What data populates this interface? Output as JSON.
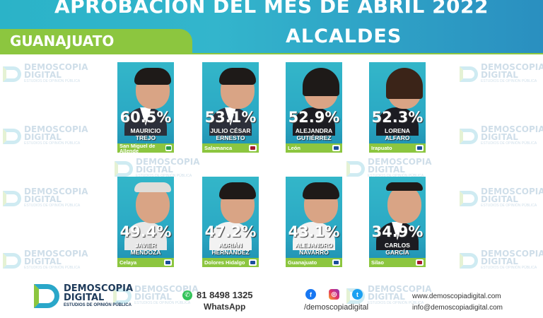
{
  "header": {
    "title": "APROBACIÓN DEL MES DE ABRIL 2022",
    "subtitle": "ALCALDES",
    "state": "GUANAJUATO"
  },
  "watermark": {
    "line1": "DEMOSCOPIA",
    "line2": "DIGITAL",
    "tagline": "ESTUDIOS DE OPINIÓN PÚBLICA"
  },
  "mayors": [
    {
      "pct": "60.5%",
      "name": "MAURICIO\nTREJO",
      "municipality": "San Miguel de Allende",
      "party": "PAN-PRI-PRD",
      "party_color": "#2a9d4a"
    },
    {
      "pct": "53.1%",
      "name": "JULIO CÉSAR\nERNESTO",
      "municipality": "Salamanca",
      "party": "MORENA",
      "party_color": "#a6192e"
    },
    {
      "pct": "52.9%",
      "name": "ALEJANDRA\nGUTIÉRREZ",
      "municipality": "León",
      "party": "PAN",
      "party_color": "#1b4e9b"
    },
    {
      "pct": "52.3%",
      "name": "LORENA\nALFARO",
      "municipality": "Irapuato",
      "party": "PAN",
      "party_color": "#1b4e9b"
    },
    {
      "pct": "49.4%",
      "name": "JAVIER\nMENDOZA",
      "municipality": "Celaya",
      "party": "PAN",
      "party_color": "#1b4e9b"
    },
    {
      "pct": "47.2%",
      "name": "ADRIÁN\nHERNÁNDEZ",
      "municipality": "Dolores Hidalgo",
      "party": "PAN",
      "party_color": "#1b4e9b"
    },
    {
      "pct": "43.1%",
      "name": "ALEJANDRO\nNAVARRO",
      "municipality": "Guanajuato",
      "party": "PAN",
      "party_color": "#1b4e9b"
    },
    {
      "pct": "34.9%",
      "name": "CARLOS\nGARCÍA",
      "municipality": "Silao",
      "party": "MORENA",
      "party_color": "#a6192e"
    }
  ],
  "footer": {
    "brand_line1": "DEMOSCOPIA",
    "brand_line2": "DIGITAL",
    "brand_tagline": "ESTUDIOS DE OPINIÓN PÚBLICA",
    "phone": "81 8498 1325",
    "phone_label": "WhatsApp",
    "social_handle": "/demoscopiadigital",
    "website": "www.demoscopiadigital.com",
    "email": "info@demoscopiadigital.com"
  },
  "colors": {
    "accent_teal": "#2bb3c8",
    "accent_green": "#8cc63f"
  }
}
